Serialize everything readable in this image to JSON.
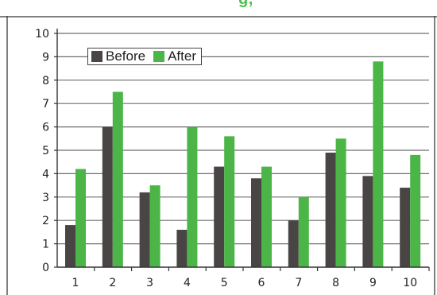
{
  "chart_data": {
    "type": "bar",
    "title": "",
    "xlabel": "",
    "ylabel": "",
    "categories": [
      "1",
      "2",
      "3",
      "4",
      "5",
      "6",
      "7",
      "8",
      "9",
      "10"
    ],
    "series": [
      {
        "name": "Before",
        "color": "#4a4545",
        "values": [
          1.8,
          6.0,
          3.2,
          1.6,
          4.3,
          3.8,
          2.0,
          4.9,
          3.9,
          3.4
        ]
      },
      {
        "name": "After",
        "color": "#4cb547",
        "values": [
          4.2,
          7.5,
          3.5,
          6.0,
          5.6,
          4.3,
          3.0,
          5.5,
          8.8,
          4.8
        ]
      }
    ],
    "ylim": [
      0,
      10
    ],
    "yticks": [
      "0",
      "1",
      "2",
      "3",
      "4",
      "5",
      "6",
      "7",
      "8",
      "9",
      "10"
    ],
    "grid": true,
    "legend_position": "top-left",
    "header_fragment": "g,"
  }
}
